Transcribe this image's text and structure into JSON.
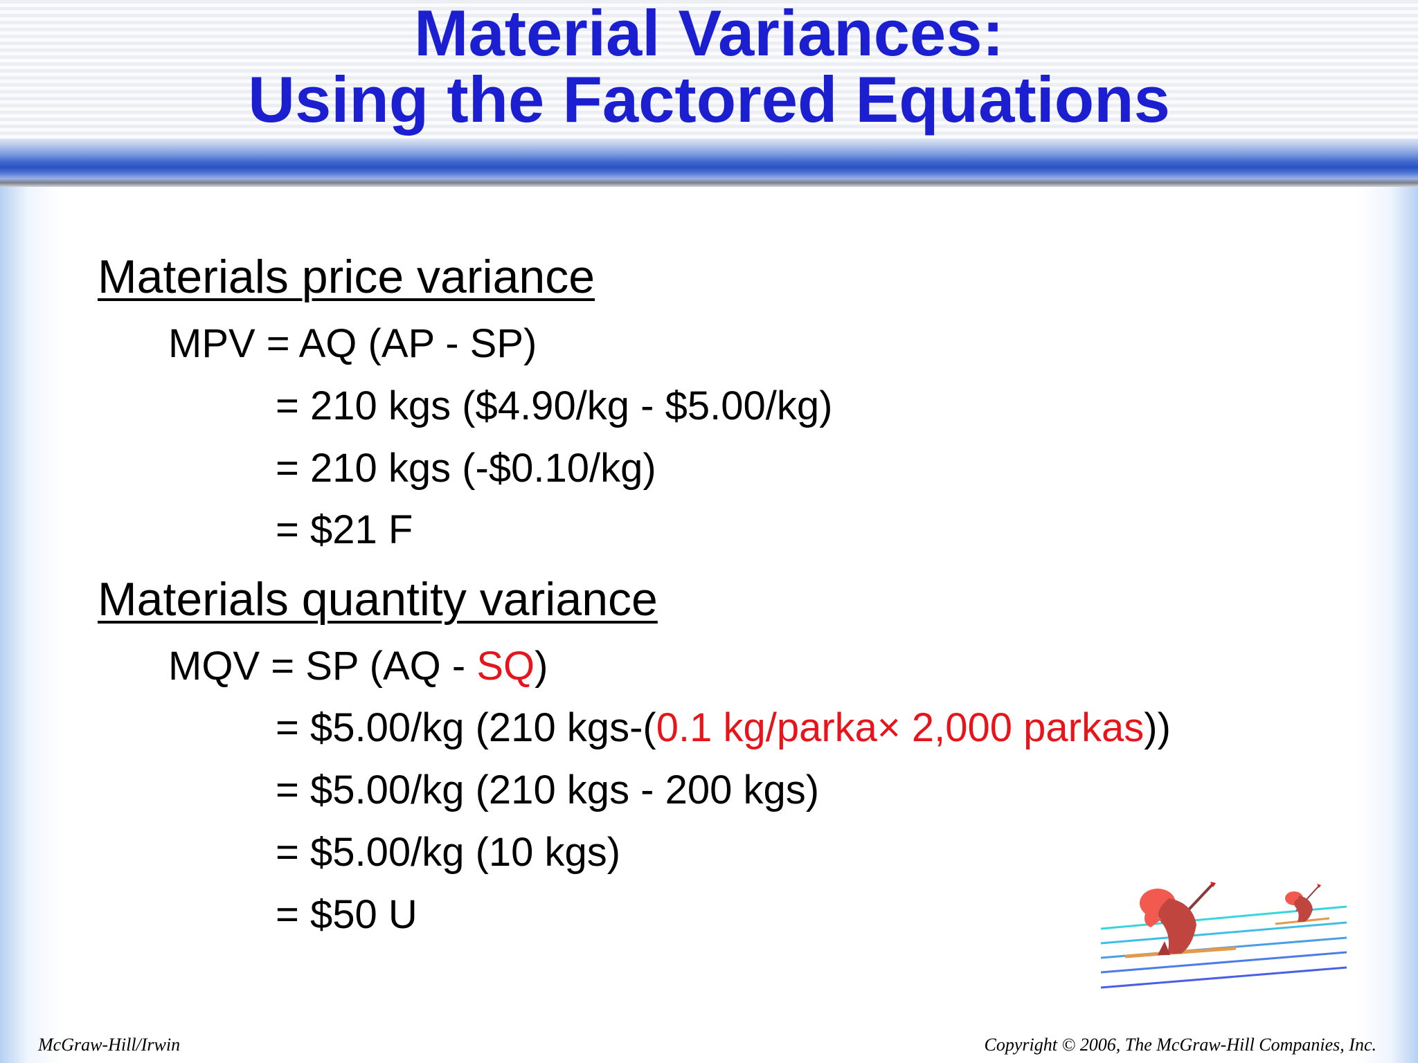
{
  "slide": {
    "title_line1": "Material Variances:",
    "title_line2": "Using the Factored Equations",
    "price_section": {
      "heading": "Materials price variance",
      "formula": "MPV = AQ (AP - SP)",
      "step1": "= 210 kgs ($4.90/kg - $5.00/kg)",
      "step2": "= 210 kgs (-$0.10/kg)",
      "result": "= $21 F"
    },
    "quantity_section": {
      "heading": "Materials quantity variance",
      "formula_prefix": "MQV = SP (AQ - ",
      "formula_highlight": "SQ",
      "formula_suffix": ")",
      "step1_prefix": "= $5.00/kg (210 kgs-(",
      "step1_highlight_a": "0.1 kg/parka",
      "step1_times": "×",
      "step1_highlight_b": " 2,000 parkas",
      "step1_suffix": "))",
      "step2": "= $5.00/kg (210 kgs - 200 kgs)",
      "step3": "= $5.00/kg (10 kgs)",
      "result": "= $50 U"
    },
    "footer_left": "McGraw-Hill/Irwin",
    "footer_right": "Copyright © 2006, The McGraw-Hill Companies, Inc.",
    "colors": {
      "title": "#1c1fd0",
      "highlight": "#e8141b",
      "text": "#000000"
    },
    "icons": [
      "skier-clipart"
    ]
  }
}
